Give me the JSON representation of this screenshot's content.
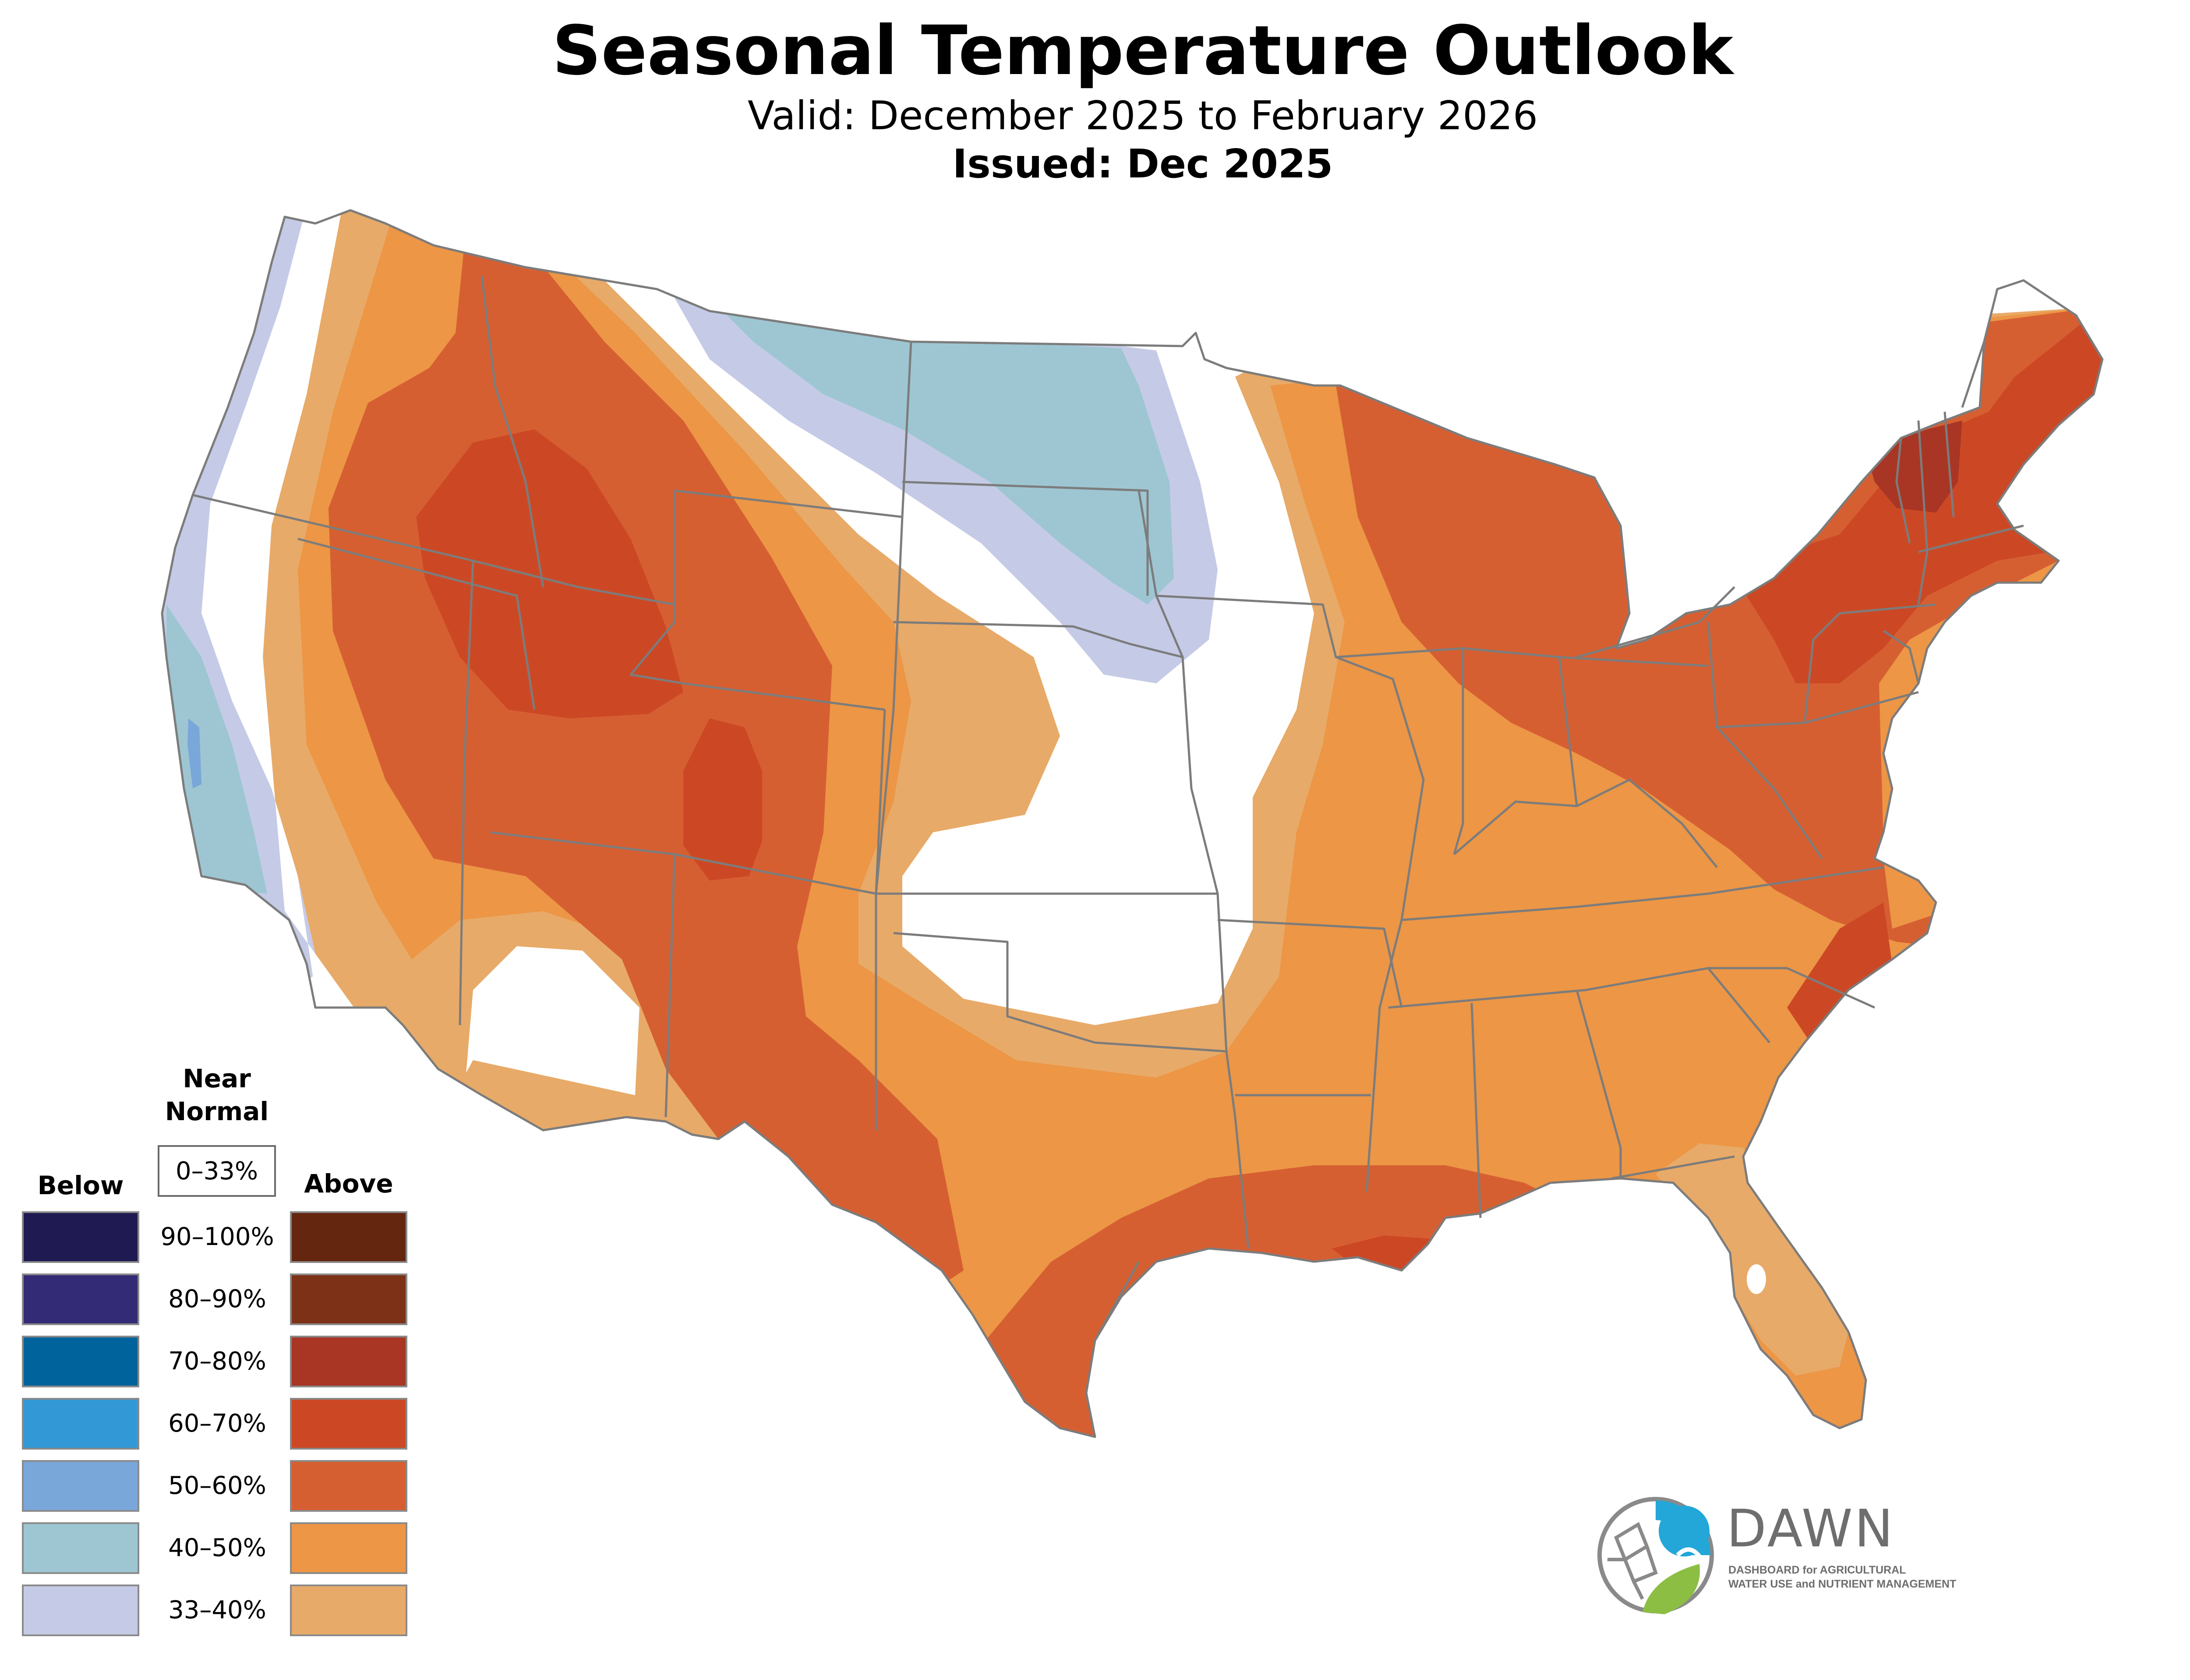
{
  "title": "Seasonal Temperature Outlook",
  "subtitle": "Valid: December 2025 to February 2026",
  "issued": "Issued: Dec 2025",
  "colors": {
    "above_33_40": "#e8aa68",
    "above_40_50": "#ec9646",
    "above_50_60": "#d65f32",
    "above_60_70": "#cc4825",
    "above_70_80": "#a93524",
    "above_80_90": "#7d3218",
    "above_90_100": "#652610",
    "below_33_40": "#c5cbe6",
    "below_40_50": "#9dc6d2",
    "below_50_60": "#7aa7da",
    "below_60_70": "#3399d6",
    "below_70_80": "#01639b",
    "below_80_90": "#342b76",
    "below_90_100": "#1f1b52",
    "near_normal": "#ffffff",
    "border": "#7c7c7c"
  },
  "legend": {
    "below_label": "Below",
    "near_label_line1": "Near",
    "near_label_line2": "Normal",
    "near_range": "0–33%",
    "above_label": "Above",
    "ranges": [
      "90–100%",
      "80–90%",
      "70–80%",
      "60–70%",
      "50–60%",
      "40–50%",
      "33–40%"
    ],
    "below_colors": [
      "#1f1b52",
      "#342b76",
      "#01639b",
      "#3399d6",
      "#7aa7da",
      "#9dc6d2",
      "#c5cbe6"
    ],
    "above_colors": [
      "#652610",
      "#7d3218",
      "#a93524",
      "#cc4825",
      "#d65f32",
      "#ec9646",
      "#e8aa68"
    ]
  },
  "logo": {
    "name": "DAWN",
    "line1": "DASHBOARD for AGRICULTURAL",
    "line2": "WATER USE and NUTRIENT MANAGEMENT",
    "blue": "#22a7d8",
    "green": "#8cbe44",
    "gray": "#8a8a8a"
  }
}
